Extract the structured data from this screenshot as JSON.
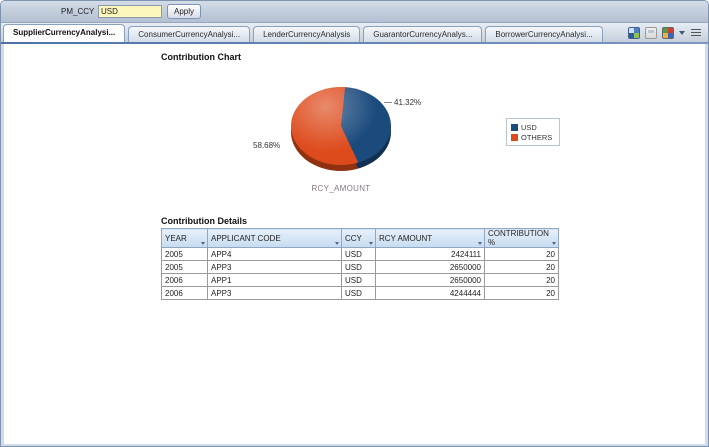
{
  "param_bar": {
    "label": "PM_CCY",
    "value": "USD",
    "apply": "Apply"
  },
  "tabs": [
    {
      "label": "SupplierCurrencyAnalysi...",
      "active": true
    },
    {
      "label": "ConsumerCurrencyAnalysi...",
      "active": false
    },
    {
      "label": "LenderCurrencyAnalysis",
      "active": false
    },
    {
      "label": "GuarantorCurrencyAnalys...",
      "active": false
    },
    {
      "label": "BorrowerCurrencyAnalysi...",
      "active": false
    }
  ],
  "toolbar": {
    "icons": [
      {
        "name": "refresh-icon"
      },
      {
        "name": "export-icon"
      },
      {
        "name": "view-options-icon"
      },
      {
        "name": "menu-icon"
      }
    ]
  },
  "chart": {
    "title": "Contribution Chart",
    "axis_label": "RCY_AMOUNT",
    "slices": [
      {
        "label": "USD",
        "percent": 41.32,
        "display": "41.32%",
        "color": "#1b4a7d"
      },
      {
        "label": "OTHERS",
        "percent": 58.68,
        "display": "58.68%",
        "color": "#dd4b1c"
      }
    ],
    "legend": [
      {
        "label": "USD",
        "color": "#1b4a7d"
      },
      {
        "label": "OTHERS",
        "color": "#dd4b1c"
      }
    ]
  },
  "chart_data": {
    "type": "pie",
    "title": "Contribution Chart",
    "series_label": "RCY_AMOUNT",
    "labels": [
      "USD",
      "OTHERS"
    ],
    "values": [
      41.32,
      58.68
    ],
    "legend_position": "right"
  },
  "details": {
    "title": "Contribution Details",
    "columns": [
      "YEAR",
      "APPLICANT CODE",
      "CCY",
      "RCY AMOUNT",
      "CONTRIBUTION %"
    ],
    "rows": [
      [
        "2005",
        "APP4",
        "USD",
        "2424111",
        "20"
      ],
      [
        "2005",
        "APP3",
        "USD",
        "2650000",
        "20"
      ],
      [
        "2006",
        "APP1",
        "USD",
        "2650000",
        "20"
      ],
      [
        "2006",
        "APP3",
        "USD",
        "4244444",
        "20"
      ]
    ]
  }
}
